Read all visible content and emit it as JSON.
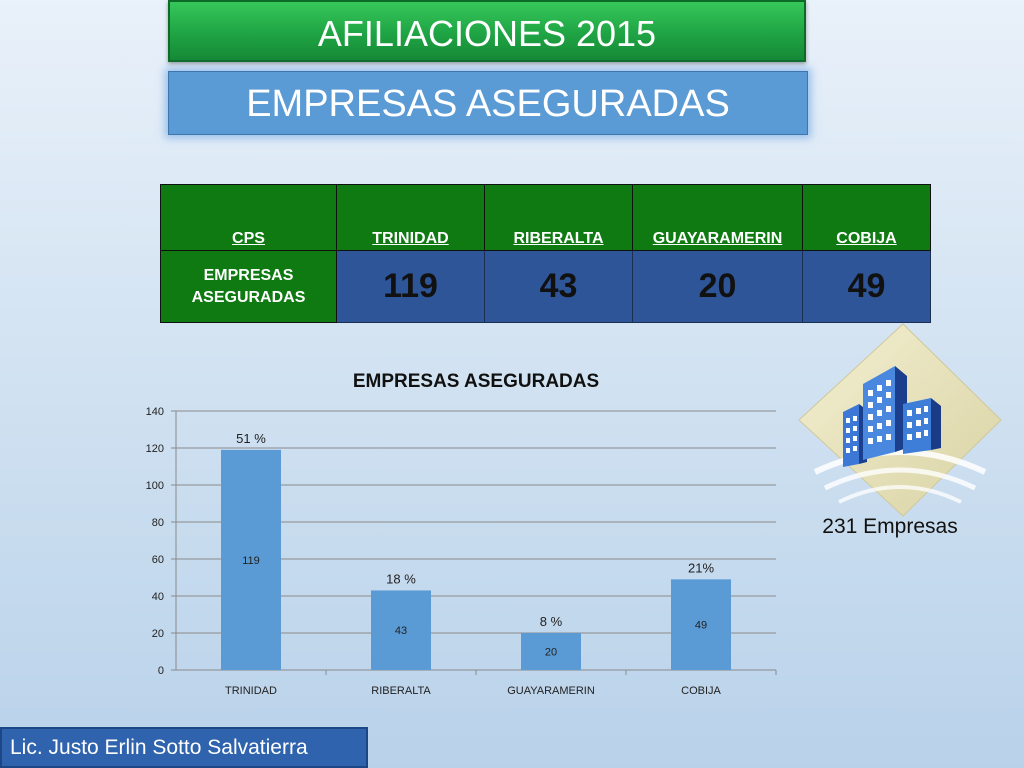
{
  "header": {
    "title": "AFILIACIONES 2015",
    "subtitle": "EMPRESAS ASEGURADAS"
  },
  "table": {
    "headers": [
      "CPS",
      "TRINIDAD",
      "RIBERALTA",
      "GUAYARAMERIN",
      "COBIJA"
    ],
    "row_label_line1": "EMPRESAS",
    "row_label_line2": "ASEGURADAS",
    "values": [
      "119",
      "43",
      "20",
      "49"
    ]
  },
  "chart_data": {
    "type": "bar",
    "title": "EMPRESAS ASEGURADAS",
    "categories": [
      "TRINIDAD",
      "RIBERALTA",
      "GUAYARAMERIN",
      "COBIJA"
    ],
    "values": [
      119,
      43,
      20,
      49
    ],
    "percent_labels": [
      "51 %",
      "18 %",
      "8 %",
      "21%"
    ],
    "ylim": [
      0,
      140
    ],
    "yticks": [
      0,
      20,
      40,
      60,
      80,
      100,
      120,
      140
    ],
    "grid": true,
    "bar_color": "#5b9bd5"
  },
  "summary": {
    "total": "231 Empresas"
  },
  "footer": {
    "author": "Lic. Justo Erlin Sotto Salvatierra"
  },
  "colors": {
    "title_green": "#1fa444",
    "subtitle_blue": "#5b9bd5",
    "table_green": "#0f7a12",
    "table_blue": "#2d5598",
    "author_blue": "#2f63ad"
  },
  "icons": {
    "logo": "buildings-logo"
  }
}
